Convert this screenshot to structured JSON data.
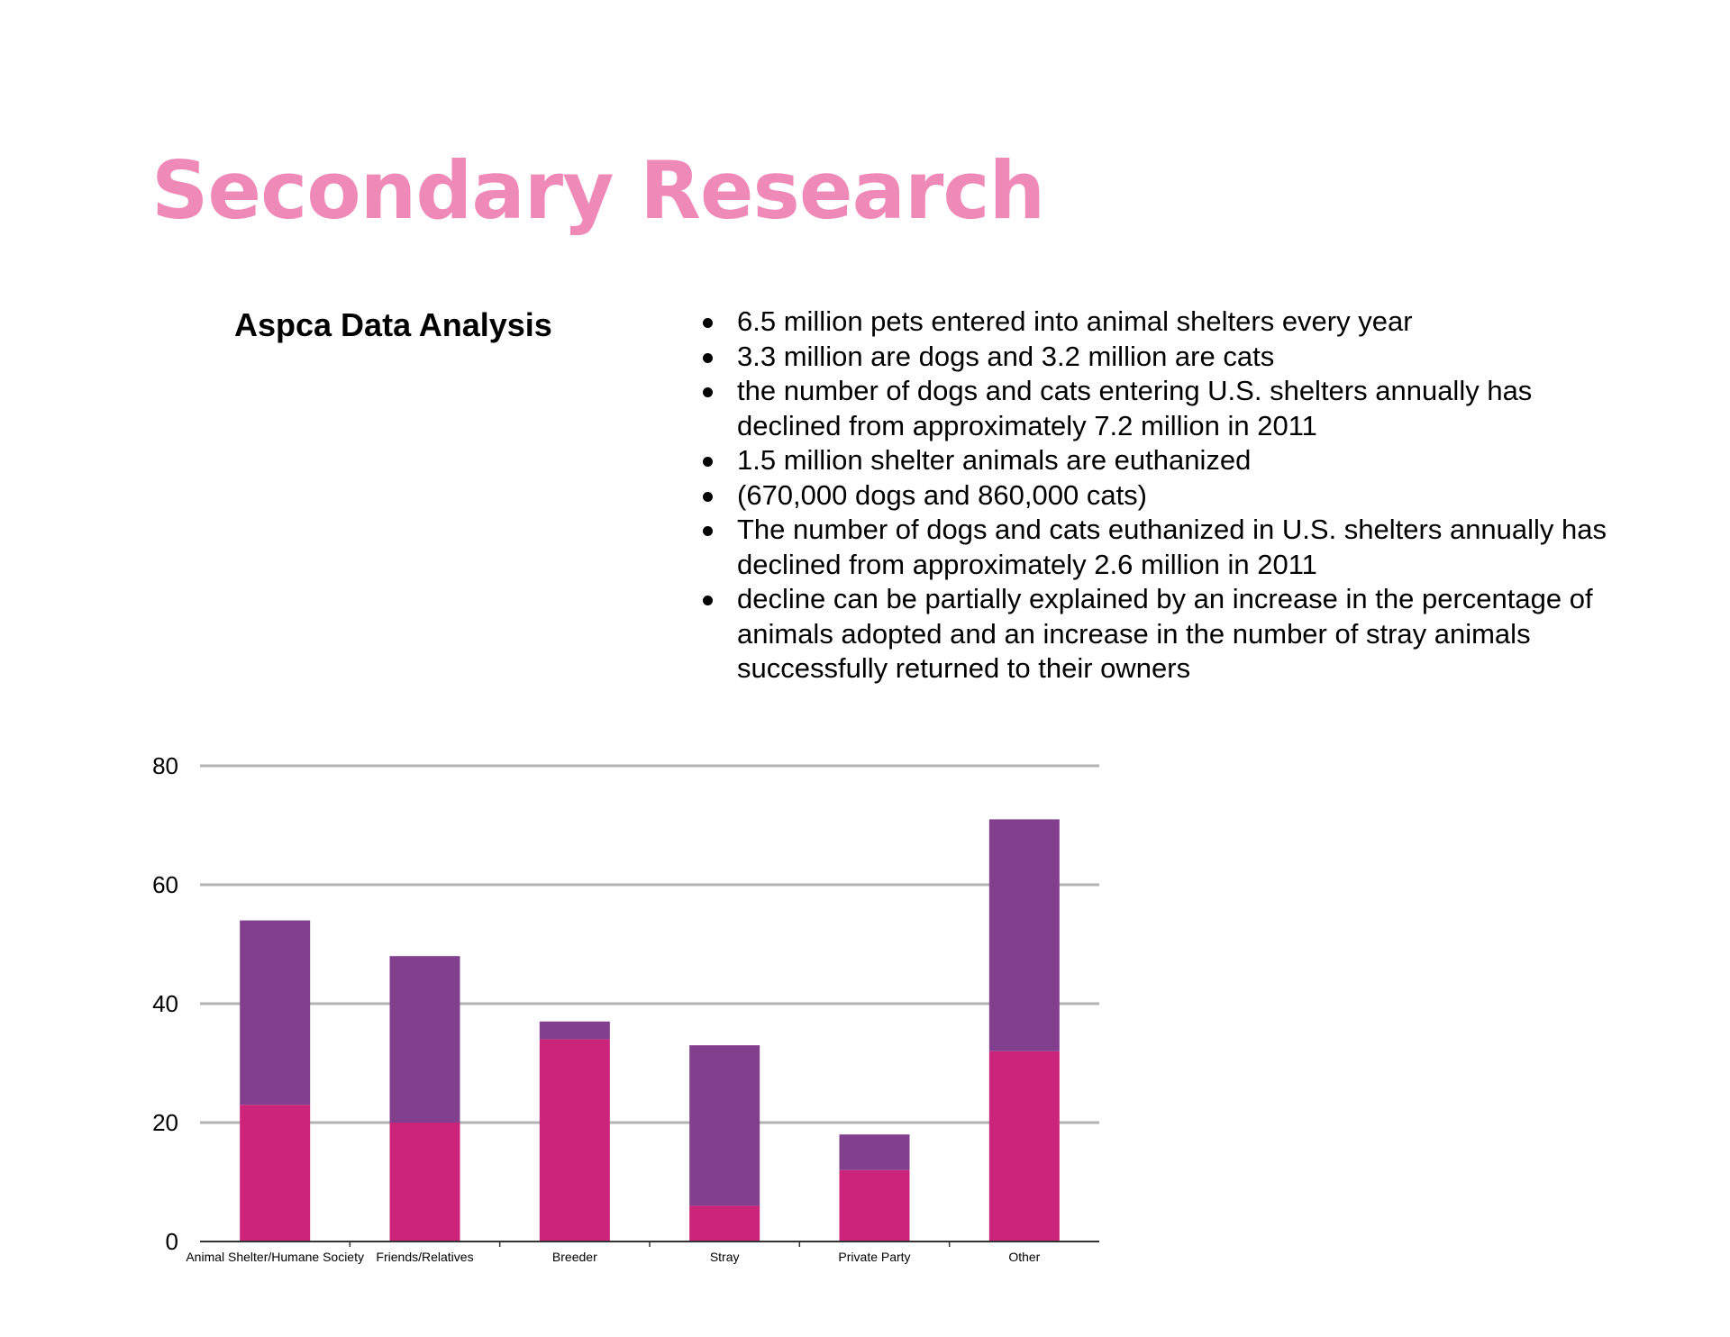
{
  "page": {
    "title": "Secondary Research",
    "section_heading": "Aspca Data Analysis",
    "facts": [
      "6.5 million pets entered into animal shelters every year",
      "3.3 million are dogs and 3.2 million are cats",
      "the number of dogs and cats entering U.S. shelters annually has declined from approximately 7.2 million in 2011",
      "1.5 million shelter animals are euthanized",
      "(670,000 dogs and 860,000 cats)",
      "The number of dogs and cats euthanized in U.S. shelters annually has declined from approximately 2.6 million in 2011",
      "decline can be partially explained by an increase in the percentage of animals adopted and an increase in the number of stray animals successfully returned to their owners"
    ]
  },
  "colors": {
    "title": "#ef8ab8",
    "series_bottom": "#cc247a",
    "series_top": "#823f8e",
    "gridline": "#b3b3b3",
    "axis": "#333333"
  },
  "chart_data": {
    "type": "bar",
    "stacked": true,
    "title": "",
    "xlabel": "",
    "ylabel": "",
    "categories": [
      "Animal Shelter/Humane Society",
      "Friends/Relatives",
      "Breeder",
      "Stray",
      "Private Party",
      "Other"
    ],
    "series": [
      {
        "values": [
          23,
          20,
          34,
          6,
          12,
          32
        ]
      },
      {
        "values": [
          31,
          28,
          3,
          27,
          6,
          39
        ]
      }
    ],
    "ylim": [
      0,
      80
    ],
    "yticks": [
      0,
      20,
      40,
      60,
      80
    ],
    "grid": true,
    "legend": "none"
  }
}
